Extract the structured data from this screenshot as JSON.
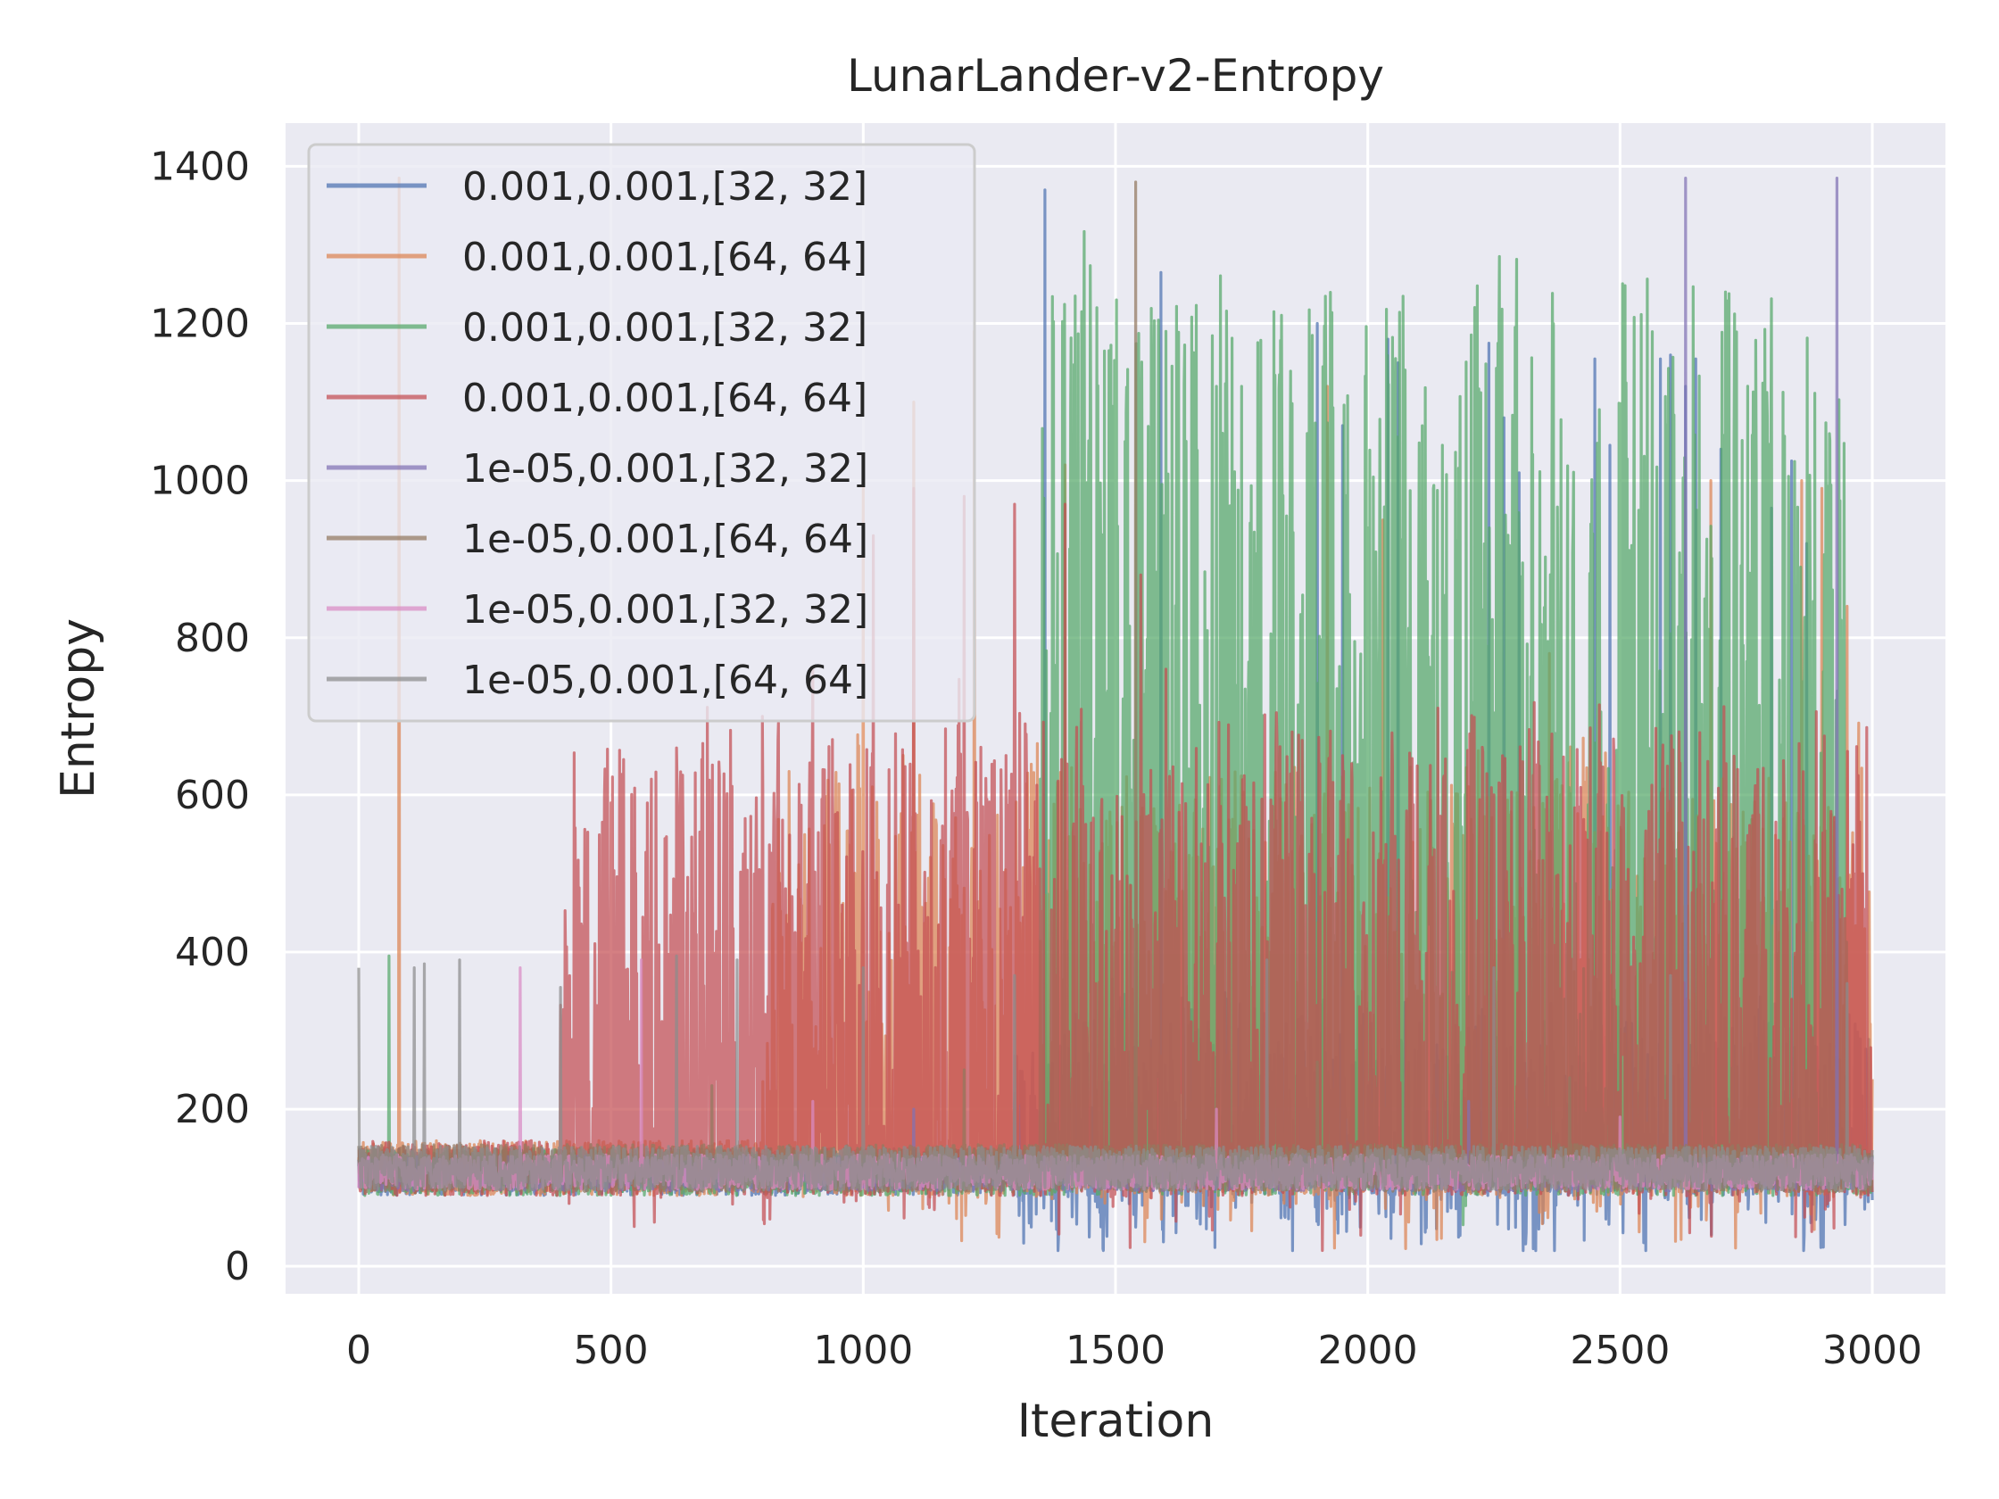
{
  "chart_data": {
    "type": "line",
    "title": "LunarLander-v2-Entropy",
    "xlabel": "Iteration",
    "ylabel": "Entropy",
    "xlim": [
      -145,
      3145
    ],
    "ylim": [
      -35,
      1455
    ],
    "xticks": [
      0,
      500,
      1000,
      1500,
      2000,
      2500,
      3000
    ],
    "yticks": [
      0,
      200,
      400,
      600,
      800,
      1000,
      1200,
      1400
    ],
    "grid": true,
    "legend_position": "upper left",
    "series": [
      {
        "name": "0.001,0.001,[32, 32]",
        "color": "#4c72b0",
        "baseline": 120,
        "noise": 30,
        "active_range": [
          1300,
          3000
        ],
        "active_level": 170,
        "spikes": [
          [
            1360,
            1370
          ],
          [
            1590,
            1265
          ],
          [
            1900,
            1200
          ],
          [
            1950,
            1070
          ],
          [
            2040,
            1180
          ],
          [
            2060,
            1150
          ],
          [
            2240,
            1175
          ],
          [
            2270,
            1080
          ],
          [
            2300,
            1010
          ],
          [
            2450,
            1155
          ],
          [
            2480,
            1045
          ],
          [
            2580,
            1155
          ],
          [
            2600,
            1160
          ],
          [
            2630,
            1120
          ],
          [
            2650,
            1155
          ],
          [
            2700,
            1040
          ],
          [
            2800,
            965
          ],
          [
            2840,
            1025
          ],
          [
            2870,
            920
          ]
        ]
      },
      {
        "name": "0.001,0.001,[64, 64]",
        "color": "#dd8452",
        "baseline": 125,
        "noise": 35,
        "active_range": [
          800,
          3000
        ],
        "active_level": 350,
        "spikes": [
          [
            80,
            1385
          ],
          [
            1000,
            1000
          ],
          [
            1100,
            1100
          ],
          [
            1220,
            1190
          ],
          [
            1400,
            1020
          ],
          [
            1920,
            1120
          ],
          [
            2030,
            950
          ],
          [
            2360,
            780
          ],
          [
            2680,
            1000
          ],
          [
            2860,
            1000
          ],
          [
            2900,
            990
          ],
          [
            2950,
            840
          ]
        ]
      },
      {
        "name": "0.001,0.001,[32, 32]",
        "color": "#55a868",
        "baseline": 120,
        "noise": 30,
        "active_range": [
          1350,
          2950
        ],
        "active_level": 700,
        "spikes": [
          [
            60,
            395
          ],
          [
            1420,
            1235
          ],
          [
            1600,
            1190
          ],
          [
            1640,
            1050
          ],
          [
            1700,
            1120
          ],
          [
            1750,
            1120
          ],
          [
            1880,
            1060
          ],
          [
            2000,
            940
          ],
          [
            2050,
            930
          ],
          [
            2130,
            990
          ],
          [
            2550,
            740
          ],
          [
            2620,
            880
          ]
        ]
      },
      {
        "name": "0.001,0.001,[64, 64]",
        "color": "#c44e52",
        "baseline": 125,
        "noise": 35,
        "active_range": [
          400,
          3000
        ],
        "active_level": 380,
        "spikes": [
          [
            500,
            590
          ],
          [
            580,
            620
          ],
          [
            680,
            645
          ],
          [
            800,
            700
          ],
          [
            900,
            760
          ],
          [
            1020,
            930
          ],
          [
            1100,
            990
          ],
          [
            1200,
            980
          ],
          [
            1300,
            970
          ],
          [
            1400,
            970
          ],
          [
            1550,
            880
          ],
          [
            1600,
            760
          ],
          [
            1850,
            680
          ],
          [
            1950,
            650
          ],
          [
            2250,
            600
          ],
          [
            2550,
            510
          ],
          [
            2940,
            480
          ]
        ]
      },
      {
        "name": "1e-05,0.001,[32, 32]",
        "color": "#8172b3",
        "baseline": 118,
        "noise": 22,
        "active_range": [
          0,
          0
        ],
        "active_level": 118,
        "spikes": [
          [
            2630,
            1385
          ],
          [
            2930,
            1385
          ],
          [
            1100,
            200
          ],
          [
            2200,
            210
          ]
        ]
      },
      {
        "name": "1e-05,0.001,[64, 64]",
        "color": "#937860",
        "baseline": 125,
        "noise": 30,
        "active_range": [
          0,
          0
        ],
        "active_level": 125,
        "spikes": [
          [
            1540,
            1380
          ],
          [
            700,
            230
          ],
          [
            1200,
            250
          ],
          [
            1900,
            260
          ],
          [
            2400,
            240
          ]
        ]
      },
      {
        "name": "1e-05,0.001,[32, 32]",
        "color": "#da8bc3",
        "baseline": 120,
        "noise": 22,
        "active_range": [
          0,
          0
        ],
        "active_level": 120,
        "spikes": [
          [
            320,
            380
          ],
          [
            560,
            390
          ],
          [
            900,
            210
          ],
          [
            1700,
            200
          ],
          [
            2500,
            190
          ]
        ]
      },
      {
        "name": "1e-05,0.001,[64, 64]",
        "color": "#8c8c8c",
        "baseline": 125,
        "noise": 28,
        "active_range": [
          0,
          0
        ],
        "active_level": 125,
        "spikes": [
          [
            0,
            380
          ],
          [
            110,
            380
          ],
          [
            130,
            385
          ],
          [
            200,
            390
          ],
          [
            400,
            355
          ],
          [
            630,
            395
          ],
          [
            750,
            390
          ],
          [
            1000,
            380
          ],
          [
            1300,
            370
          ],
          [
            1800,
            390
          ],
          [
            2250,
            380
          ],
          [
            2600,
            370
          ],
          [
            2950,
            360
          ]
        ]
      }
    ],
    "n_points": 3001
  }
}
